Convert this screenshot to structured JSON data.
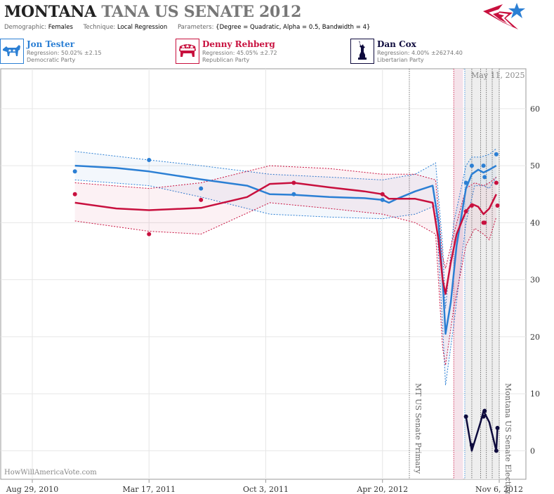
{
  "header": {
    "title_state": "MONTANA",
    "title_rest": "TANA US SENATE 2012",
    "demographic_label": "Demographic:",
    "demographic_value": "Females",
    "technique_label": "Technique:",
    "technique_value": "Local Regression",
    "parameters_label": "Parameters:",
    "parameters_value": "{Degree = Quadratic, Alpha = 0.5, Bandwidth = 4}"
  },
  "candidates": [
    {
      "name": "Jon Tester",
      "regression": "Regression: 50.02% ±2.15",
      "party": "Democratic Party",
      "color": "#2b7fd4",
      "icon": "donkey-icon"
    },
    {
      "name": "Denny Rehberg",
      "regression": "Regression: 45.05% ±2.72",
      "party": "Republican Party",
      "color": "#c8103e",
      "icon": "elephant-icon"
    },
    {
      "name": "Dan Cox",
      "regression": "Regression: 4.00% ±26274.40",
      "party": "Libertarian Party",
      "color": "#0e0b3d",
      "icon": "liberty-icon"
    }
  ],
  "date_label": "May 11, 2025",
  "footer": "HowWillAmericaVote.com",
  "chart_data": {
    "type": "line",
    "x_axis": {
      "tick_labels": [
        "Aug 29, 2010",
        "Mar 17, 2011",
        "Oct 3, 2011",
        "Apr 20, 2012",
        "Nov 6, 2012"
      ],
      "tick_dates": [
        "2010-08-29",
        "2011-03-17",
        "2011-10-03",
        "2012-04-20",
        "2012-11-06"
      ]
    },
    "y_axis": {
      "ticks": [
        0,
        10,
        20,
        30,
        40,
        50,
        60
      ],
      "range": [
        -5,
        67
      ],
      "position": "right"
    },
    "grid": true,
    "events": [
      {
        "label": "MT US Senate Primary",
        "date": "2012-06-05"
      },
      {
        "label": "Montana US Senate Election",
        "date": "2012-11-06"
      }
    ],
    "series": [
      {
        "name": "Jon Tester",
        "color": "#2b7fd4",
        "points": [
          [
            "2010-11-10",
            49
          ],
          [
            "2011-03-17",
            51
          ],
          [
            "2011-06-14",
            46
          ],
          [
            "2011-11-20",
            45
          ],
          [
            "2012-04-20",
            44
          ],
          [
            "2012-09-10",
            47
          ],
          [
            "2012-09-20",
            50
          ],
          [
            "2012-10-10",
            50
          ],
          [
            "2012-10-12",
            48
          ],
          [
            "2012-11-01",
            52
          ]
        ],
        "line": [
          [
            "2010-11-10",
            50
          ],
          [
            "2011-01-20",
            49.6
          ],
          [
            "2011-03-17",
            49
          ],
          [
            "2011-06-14",
            47.6
          ],
          [
            "2011-09-01",
            46.5
          ],
          [
            "2011-10-10",
            45
          ],
          [
            "2011-11-20",
            44.9
          ],
          [
            "2012-01-20",
            44.5
          ],
          [
            "2012-03-20",
            44.3
          ],
          [
            "2012-04-20",
            44.0
          ],
          [
            "2012-05-01",
            43.5
          ],
          [
            "2012-05-15",
            44.2
          ],
          [
            "2012-06-15",
            45.5
          ],
          [
            "2012-07-15",
            46.5
          ],
          [
            "2012-07-25",
            40
          ],
          [
            "2012-08-01",
            30
          ],
          [
            "2012-08-06",
            20.5
          ],
          [
            "2012-08-15",
            26
          ],
          [
            "2012-08-25",
            36
          ],
          [
            "2012-09-10",
            46
          ],
          [
            "2012-09-20",
            48.5
          ],
          [
            "2012-10-01",
            49.3
          ],
          [
            "2012-10-10",
            48.8
          ],
          [
            "2012-10-20",
            49.3
          ],
          [
            "2012-11-01",
            50
          ]
        ],
        "upper": [
          [
            "2010-11-10",
            52.5
          ],
          [
            "2011-03-17",
            51
          ],
          [
            "2011-06-14",
            50
          ],
          [
            "2011-10-10",
            48.5
          ],
          [
            "2012-01-20",
            48
          ],
          [
            "2012-04-20",
            47.5
          ],
          [
            "2012-06-15",
            48.5
          ],
          [
            "2012-07-20",
            50.5
          ],
          [
            "2012-08-01",
            36
          ],
          [
            "2012-08-06",
            25
          ],
          [
            "2012-08-20",
            40
          ],
          [
            "2012-09-10",
            50
          ],
          [
            "2012-09-20",
            51.5
          ],
          [
            "2012-10-05",
            51.5
          ],
          [
            "2012-10-20",
            52
          ],
          [
            "2012-11-01",
            53
          ]
        ],
        "lower": [
          [
            "2010-11-10",
            47.5
          ],
          [
            "2011-03-17",
            46.5
          ],
          [
            "2011-06-14",
            44.5
          ],
          [
            "2011-10-10",
            41.5
          ],
          [
            "2012-01-20",
            41
          ],
          [
            "2012-04-20",
            40.7
          ],
          [
            "2012-06-15",
            41.5
          ],
          [
            "2012-07-20",
            43
          ],
          [
            "2012-08-01",
            22
          ],
          [
            "2012-08-06",
            11.5
          ],
          [
            "2012-08-20",
            22
          ],
          [
            "2012-09-10",
            40
          ],
          [
            "2012-09-25",
            46.5
          ],
          [
            "2012-10-10",
            46.5
          ],
          [
            "2012-10-20",
            46
          ],
          [
            "2012-11-01",
            48
          ]
        ]
      },
      {
        "name": "Denny Rehberg",
        "color": "#c8103e",
        "points": [
          [
            "2010-11-10",
            45
          ],
          [
            "2011-03-17",
            38
          ],
          [
            "2011-06-14",
            44
          ],
          [
            "2011-11-20",
            47
          ],
          [
            "2012-04-20",
            45
          ],
          [
            "2012-09-10",
            42
          ],
          [
            "2012-09-20",
            43
          ],
          [
            "2012-10-10",
            40
          ],
          [
            "2012-10-12",
            40
          ],
          [
            "2012-11-01",
            47
          ],
          [
            "2012-11-03",
            43
          ]
        ],
        "line": [
          [
            "2010-11-10",
            43.5
          ],
          [
            "2011-01-20",
            42.5
          ],
          [
            "2011-03-17",
            42.2
          ],
          [
            "2011-06-14",
            42.6
          ],
          [
            "2011-09-01",
            44.5
          ],
          [
            "2011-10-10",
            46.8
          ],
          [
            "2011-11-20",
            47
          ],
          [
            "2012-01-20",
            46.2
          ],
          [
            "2012-03-20",
            45.5
          ],
          [
            "2012-04-20",
            45.0
          ],
          [
            "2012-05-01",
            44.2
          ],
          [
            "2012-06-15",
            44.2
          ],
          [
            "2012-07-15",
            43.5
          ],
          [
            "2012-07-25",
            37
          ],
          [
            "2012-08-01",
            30
          ],
          [
            "2012-08-06",
            27.5
          ],
          [
            "2012-08-15",
            33
          ],
          [
            "2012-08-25",
            38
          ],
          [
            "2012-09-10",
            42
          ],
          [
            "2012-09-20",
            43.3
          ],
          [
            "2012-10-01",
            42.8
          ],
          [
            "2012-10-10",
            41.5
          ],
          [
            "2012-10-20",
            42.5
          ],
          [
            "2012-11-01",
            45
          ]
        ],
        "upper": [
          [
            "2010-11-10",
            47
          ],
          [
            "2011-03-17",
            46
          ],
          [
            "2011-06-14",
            47
          ],
          [
            "2011-10-10",
            50
          ],
          [
            "2012-01-20",
            49.5
          ],
          [
            "2012-04-20",
            48.5
          ],
          [
            "2012-06-15",
            48.5
          ],
          [
            "2012-07-20",
            47.5
          ],
          [
            "2012-08-01",
            34
          ],
          [
            "2012-08-06",
            32
          ],
          [
            "2012-08-20",
            38
          ],
          [
            "2012-09-10",
            46
          ],
          [
            "2012-09-25",
            47
          ],
          [
            "2012-10-10",
            46.5
          ],
          [
            "2012-10-20",
            47
          ],
          [
            "2012-11-01",
            48
          ]
        ],
        "lower": [
          [
            "2010-11-10",
            40.3
          ],
          [
            "2011-03-17",
            38.5
          ],
          [
            "2011-06-14",
            38
          ],
          [
            "2011-10-10",
            43.5
          ],
          [
            "2012-01-20",
            42.5
          ],
          [
            "2012-04-20",
            41.5
          ],
          [
            "2012-06-15",
            40
          ],
          [
            "2012-07-20",
            38
          ],
          [
            "2012-08-01",
            18
          ],
          [
            "2012-08-06",
            15
          ],
          [
            "2012-08-20",
            25
          ],
          [
            "2012-09-10",
            36
          ],
          [
            "2012-09-25",
            39
          ],
          [
            "2012-10-10",
            38
          ],
          [
            "2012-10-20",
            37
          ],
          [
            "2012-11-01",
            41
          ]
        ]
      },
      {
        "name": "Dan Cox",
        "color": "#0e0b3d",
        "points": [
          [
            "2012-09-10",
            6
          ],
          [
            "2012-09-20",
            1
          ],
          [
            "2012-10-10",
            6
          ],
          [
            "2012-10-12",
            7
          ],
          [
            "2012-11-01",
            0
          ],
          [
            "2012-11-03",
            4
          ]
        ],
        "line": [
          [
            "2012-09-10",
            6
          ],
          [
            "2012-09-20",
            0
          ],
          [
            "2012-10-05",
            5
          ],
          [
            "2012-10-10",
            7
          ],
          [
            "2012-10-20",
            5
          ],
          [
            "2012-11-01",
            0
          ],
          [
            "2012-11-03",
            4
          ]
        ]
      }
    ],
    "shaded_bands": [
      {
        "start": "2012-08-20",
        "end": "2012-09-05",
        "color": "#f5e3ea"
      },
      {
        "start": "2012-09-08",
        "end": "2012-11-06",
        "color": "#eeeeee"
      }
    ],
    "marker_lines": [
      {
        "date": "2012-06-05",
        "color": "#555555"
      },
      {
        "date": "2012-08-20",
        "color": "#c8103e"
      },
      {
        "date": "2012-09-08",
        "color": "#2b7fd4"
      },
      {
        "date": "2012-09-20",
        "color": "#555555"
      },
      {
        "date": "2012-10-05",
        "color": "#555555"
      },
      {
        "date": "2012-10-15",
        "color": "#555555"
      },
      {
        "date": "2012-10-25",
        "color": "#555555"
      },
      {
        "date": "2012-11-06",
        "color": "#555555"
      }
    ]
  }
}
